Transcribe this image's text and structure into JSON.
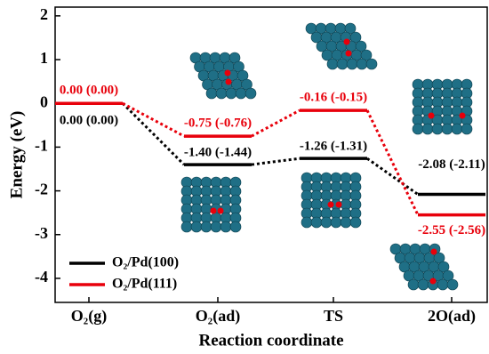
{
  "chart_data": {
    "type": "energy-profile",
    "x_label": "Reaction coordinate",
    "y_label": "Energy (eV)",
    "categories": [
      "O₂(g)",
      "O₂(ad)",
      "TS",
      "2O(ad)"
    ],
    "ylim": [
      -4.55,
      2.2
    ],
    "yticks": [
      -4,
      -3,
      -2,
      -1,
      0,
      1,
      2
    ],
    "legend": "lower left",
    "series": [
      {
        "name": "O₂/Pd(100)",
        "color": "#000000",
        "values": [
          0.0,
          -1.4,
          -1.26,
          -2.08
        ],
        "value_labels": [
          "0.00 (0.00)",
          "-1.40 (-1.44)",
          "-1.26 (-1.31)",
          "-2.08 (-2.11)"
        ]
      },
      {
        "name": "O₂/Pd(111)",
        "color": "#e8000b",
        "values": [
          0.0,
          -0.75,
          -0.16,
          -2.55
        ],
        "value_labels": [
          "0.00 (0.00)",
          "-0.75 (-0.76)",
          "-0.16 (-0.15)",
          "-2.55 (-2.56)"
        ]
      }
    ]
  }
}
